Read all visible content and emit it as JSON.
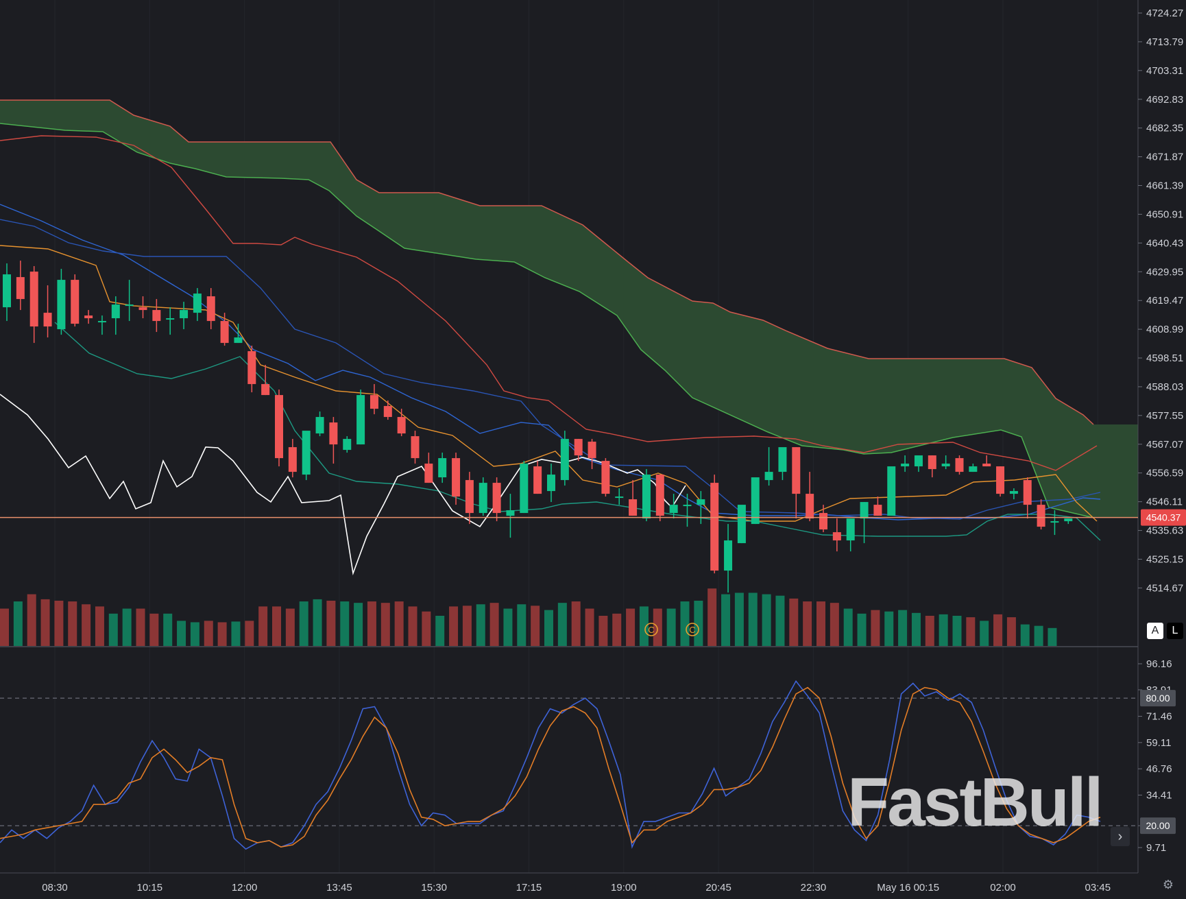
{
  "chart_data": [
    {
      "type": "candlestick",
      "title": "",
      "price_axis": {
        "ticks": [
          "4724.27",
          "4713.79",
          "4703.31",
          "4692.83",
          "4682.35",
          "4671.87",
          "4661.39",
          "4650.91",
          "4640.43",
          "4629.95",
          "4619.47",
          "4608.99",
          "4598.51",
          "4588.03",
          "4577.55",
          "4567.07",
          "4556.59",
          "4546.11",
          "4535.63",
          "4525.15",
          "4514.67"
        ],
        "range": [
          4504.19,
          4728.5
        ]
      },
      "current_price": "4540.37",
      "time_axis": [
        "08:30",
        "10:15",
        "12:00",
        "13:45",
        "15:30",
        "17:15",
        "19:00",
        "20:45",
        "22:30",
        "May 16 00:15",
        "02:00",
        "03:45"
      ],
      "candles_ohlc": [
        [
          4617,
          4633,
          4612,
          4629
        ],
        [
          4628,
          4634,
          4616,
          4620
        ],
        [
          4630,
          4632,
          4604,
          4610
        ],
        [
          4615,
          4625,
          4606,
          4610
        ],
        [
          4609,
          4631,
          4607,
          4627
        ],
        [
          4627,
          4629,
          4610,
          4611
        ],
        [
          4614,
          4616,
          4611,
          4613
        ],
        [
          4612,
          4614,
          4607,
          4612
        ],
        [
          4613,
          4621,
          4607,
          4618
        ],
        [
          4618,
          4627,
          4612,
          4618
        ],
        [
          4617,
          4621,
          4613,
          4616
        ],
        [
          4616,
          4620,
          4608,
          4612
        ],
        [
          4613,
          4617,
          4607,
          4613
        ],
        [
          4613,
          4619,
          4609,
          4616
        ],
        [
          4615,
          4624,
          4612,
          4622
        ],
        [
          4621,
          4624,
          4609,
          4612
        ],
        [
          4612,
          4615,
          4603,
          4604
        ],
        [
          4604,
          4611,
          4604,
          4606
        ],
        [
          4601,
          4603,
          4586,
          4589
        ],
        [
          4589,
          4596,
          4585,
          4585
        ],
        [
          4585,
          4587,
          4559,
          4562
        ],
        [
          4566,
          4569,
          4555,
          4557
        ],
        [
          4556,
          4571,
          4554,
          4572
        ],
        [
          4571,
          4579,
          4570,
          4577
        ],
        [
          4575,
          4577,
          4560,
          4567
        ],
        [
          4565,
          4570,
          4564,
          4569
        ],
        [
          4567,
          4587,
          4567,
          4585
        ],
        [
          4585,
          4589,
          4578,
          4580
        ],
        [
          4581,
          4583,
          4576,
          4577
        ],
        [
          4577,
          4580,
          4570,
          4571
        ],
        [
          4570,
          4572,
          4560,
          4562
        ],
        [
          4560,
          4564,
          4553,
          4553
        ],
        [
          4555,
          4564,
          4553,
          4562
        ],
        [
          4562,
          4564,
          4545,
          4548
        ],
        [
          4554,
          4557,
          4538,
          4542
        ],
        [
          4542,
          4555,
          4541,
          4553
        ],
        [
          4553,
          4555,
          4539,
          4542
        ],
        [
          4541,
          4549,
          4533,
          4543
        ],
        [
          4542,
          4561,
          4542,
          4560
        ],
        [
          4559,
          4561,
          4549,
          4549
        ],
        [
          4550,
          4560,
          4546,
          4556
        ],
        [
          4554,
          4572,
          4552,
          4569
        ],
        [
          4569,
          4569,
          4561,
          4563
        ],
        [
          4568,
          4569,
          4558,
          4562
        ],
        [
          4561,
          4562,
          4548,
          4549
        ],
        [
          4548,
          4551,
          4545,
          4548
        ],
        [
          4547,
          4554,
          4541,
          4541
        ],
        [
          4540,
          4558,
          4539,
          4556
        ],
        [
          4556,
          4556,
          4539,
          4541
        ],
        [
          4542,
          4549,
          4540,
          4545
        ],
        [
          4545,
          4549,
          4537,
          4545
        ],
        [
          4545,
          4550,
          4538,
          4547
        ],
        [
          4553,
          4556,
          4520,
          4521
        ],
        [
          4521,
          4538,
          4513,
          4532
        ],
        [
          4531,
          4543,
          4531,
          4545
        ],
        [
          4538,
          4552,
          4538,
          4555
        ],
        [
          4554,
          4566,
          4552,
          4557
        ],
        [
          4557,
          4562,
          4554,
          4566
        ],
        [
          4566,
          4566,
          4540,
          4549
        ],
        [
          4549,
          4557,
          4539,
          4540
        ],
        [
          4542,
          4545,
          4535,
          4536
        ],
        [
          4535,
          4540,
          4528,
          4532
        ],
        [
          4532,
          4536,
          4528,
          4540
        ],
        [
          4540,
          4546,
          4531,
          4546
        ],
        [
          4545,
          4548,
          4541,
          4541
        ],
        [
          4541,
          4558,
          4541,
          4559
        ],
        [
          4559,
          4563,
          4557,
          4560
        ],
        [
          4559,
          4560,
          4557,
          4563
        ],
        [
          4563,
          4563,
          4555,
          4558
        ],
        [
          4559,
          4563,
          4558,
          4560
        ],
        [
          4562,
          4563,
          4556,
          4557
        ],
        [
          4557,
          4560,
          4557,
          4559
        ],
        [
          4560,
          4563,
          4559,
          4559
        ],
        [
          4559,
          4559,
          4548,
          4549
        ],
        [
          4549,
          4551,
          4547,
          4550
        ],
        [
          4554,
          4555,
          4540,
          4545
        ],
        [
          4545,
          4547,
          4536,
          4537
        ],
        [
          4539,
          4543,
          4534,
          4539
        ],
        [
          4539,
          4540,
          4538,
          4540
        ]
      ],
      "volume_up": [
        false,
        true,
        false,
        false,
        false,
        false,
        false,
        false,
        true,
        true,
        false,
        false,
        true,
        true,
        true,
        false,
        false,
        true,
        false,
        false,
        false,
        false,
        true,
        true,
        false,
        true,
        true,
        false,
        false,
        false,
        false,
        false,
        true,
        false,
        false,
        true,
        false,
        true,
        true,
        false,
        true,
        true,
        false,
        false,
        false,
        false,
        false,
        true,
        false,
        true,
        true,
        true,
        false,
        true,
        true,
        true,
        true,
        true,
        false,
        false,
        false,
        false,
        true,
        true,
        false,
        true,
        true,
        true,
        false,
        true,
        true,
        false,
        true,
        false,
        false,
        true,
        true,
        true
      ],
      "volume_values": [
        52,
        62,
        72,
        65,
        63,
        62,
        58,
        55,
        45,
        52,
        52,
        45,
        45,
        35,
        33,
        35,
        33,
        34,
        35,
        55,
        55,
        52,
        62,
        65,
        63,
        62,
        60,
        62,
        60,
        62,
        55,
        48,
        42,
        55,
        56,
        58,
        60,
        52,
        58,
        56,
        50,
        60,
        62,
        52,
        42,
        45,
        52,
        55,
        52,
        52,
        62,
        63,
        80,
        72,
        74,
        74,
        72,
        70,
        66,
        62,
        62,
        60,
        52,
        45,
        50,
        48,
        50,
        46,
        42,
        44,
        42,
        40,
        35,
        44,
        40,
        30,
        28,
        25
      ],
      "markers": [
        "C",
        "C"
      ],
      "watermark": "FastBull"
    },
    {
      "type": "line",
      "title": "",
      "value_axis": {
        "ticks": [
          "96.16",
          "83.91",
          "71.46",
          "59.11",
          "46.76",
          "34.41",
          "20.00",
          "9.71"
        ],
        "range": [
          0,
          100
        ]
      },
      "reference_levels": [
        "80.00",
        "20.00"
      ],
      "series": [
        {
          "color": "#3e63d8",
          "values": [
            12,
            18,
            14,
            18,
            14,
            19,
            22,
            27,
            39,
            30,
            31,
            38,
            50,
            60,
            52,
            42,
            41,
            56,
            52,
            34,
            14,
            9,
            12,
            13,
            10,
            12,
            20,
            30,
            36,
            47,
            60,
            75,
            76,
            66,
            47,
            30,
            20,
            26,
            25,
            21,
            21,
            21,
            25,
            27,
            39,
            52,
            66,
            75,
            73,
            77,
            80,
            75,
            60,
            44,
            10,
            22,
            22,
            24,
            26,
            26,
            35,
            47,
            34,
            38,
            42,
            54,
            69,
            78,
            88,
            81,
            73,
            49,
            27,
            18,
            13,
            25,
            51,
            82,
            87,
            81,
            83,
            79,
            82,
            78,
            65,
            48,
            32,
            20,
            15,
            14,
            11,
            16,
            25,
            24,
            22
          ]
        },
        {
          "color": "#e37d26",
          "values": [
            14,
            15,
            16,
            18,
            19,
            20,
            21,
            22,
            30,
            30,
            33,
            40,
            42,
            52,
            56,
            51,
            45,
            48,
            52,
            51,
            30,
            14,
            12,
            13,
            10,
            11,
            15,
            25,
            32,
            42,
            51,
            62,
            71,
            66,
            54,
            37,
            24,
            23,
            20,
            21,
            22,
            22,
            25,
            28,
            34,
            43,
            56,
            67,
            74,
            76,
            73,
            66,
            47,
            30,
            12,
            18,
            18,
            22,
            24,
            26,
            30,
            37,
            37,
            38,
            40,
            46,
            57,
            70,
            82,
            85,
            80,
            62,
            40,
            24,
            14,
            20,
            41,
            65,
            82,
            85,
            84,
            80,
            78,
            69,
            55,
            40,
            28,
            20,
            16,
            14,
            12,
            14,
            18,
            22,
            24
          ]
        }
      ]
    }
  ]
}
